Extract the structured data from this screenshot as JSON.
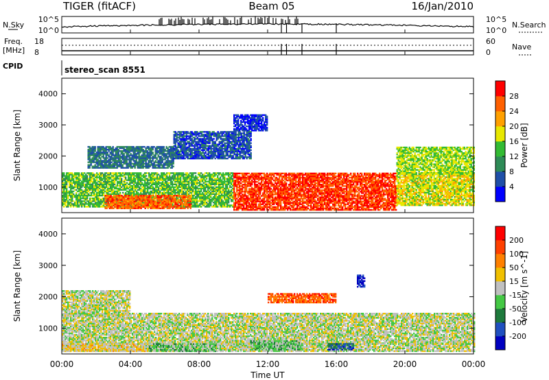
{
  "header": {
    "station": "TIGER (fitACF)",
    "beam": "Beam 05",
    "date": "16/Jan/2010"
  },
  "sky_panel": {
    "left_label": "N.Sky",
    "right_label": "N.Search",
    "left_ticks": [
      "10^5",
      "10^0"
    ],
    "right_ticks": [
      "10^5",
      "10^0"
    ]
  },
  "freq_panel": {
    "left_label_1": "Freq.",
    "left_label_2": "[MHz]",
    "right_label": "Nave",
    "left_ticks": [
      "18",
      "8"
    ],
    "right_ticks": [
      "60",
      "0"
    ]
  },
  "cpid_panel": {
    "label": "CPID",
    "program": "stereo_scan 8551"
  },
  "power_panel": {
    "ylabel": "Slant Range [km]",
    "yticks": [
      "4000",
      "3000",
      "2000",
      "1000"
    ],
    "colorbar_label": "Power [dB]",
    "colorbar_ticks": [
      "28",
      "24",
      "20",
      "16",
      "12",
      "8",
      "4"
    ],
    "colors": [
      "#0000ff",
      "#1f4fa8",
      "#2e8b57",
      "#33bb33",
      "#e8e800",
      "#ffa000",
      "#ff6000",
      "#ff0000"
    ]
  },
  "velocity_panel": {
    "ylabel": "Slant Range [km]",
    "yticks": [
      "4000",
      "3000",
      "2000",
      "1000"
    ],
    "colorbar_label": "Velocity [m s^-1]",
    "colorbar_ticks": [
      "200",
      "100",
      "50",
      "15",
      "-15",
      "-50",
      "-100",
      "-200"
    ],
    "colors": [
      "#0000c0",
      "#2050c0",
      "#1e7a3c",
      "#44c844",
      "#c0c0c0",
      "#f0c000",
      "#ff8000",
      "#ff4000",
      "#ff0000"
    ]
  },
  "x_axis": {
    "label": "Time UT",
    "ticks": [
      "00:00",
      "04:00",
      "08:00",
      "12:00",
      "16:00",
      "20:00",
      "00:00"
    ]
  },
  "chart_data": {
    "type": "heatmap",
    "title": "TIGER (fitACF) Beam 05 16/Jan/2010",
    "xlabel": "Time UT",
    "ylabel": "Slant Range [km]",
    "x_range_hours": [
      0,
      24
    ],
    "y_range_km": [
      180,
      4500
    ],
    "panels": [
      {
        "name": "Power [dB]",
        "color_range": [
          0,
          32
        ],
        "regions": [
          {
            "t": [
              0,
              10
            ],
            "r": [
              350,
              1450
            ],
            "value": 14
          },
          {
            "t": [
              2.5,
              7.5
            ],
            "r": [
              300,
              750
            ],
            "value": 26
          },
          {
            "t": [
              10,
              19.5
            ],
            "r": [
              250,
              1450
            ],
            "value": 28
          },
          {
            "t": [
              19.5,
              24
            ],
            "r": [
              400,
              1450
            ],
            "value": 18
          },
          {
            "t": [
              1.5,
              6.5
            ],
            "r": [
              1600,
              2300
            ],
            "value": 8
          },
          {
            "t": [
              6.5,
              11
            ],
            "r": [
              1900,
              2800
            ],
            "value": 6
          },
          {
            "t": [
              10,
              12
            ],
            "r": [
              2800,
              3300
            ],
            "value": 4
          },
          {
            "t": [
              19.5,
              24
            ],
            "r": [
              1400,
              2300
            ],
            "value": 16
          }
        ]
      },
      {
        "name": "Velocity [m s^-1]",
        "color_range": [
          -250,
          250
        ],
        "regions": [
          {
            "t": [
              0,
              24
            ],
            "r": [
              500,
              1450
            ],
            "value": 0
          },
          {
            "t": [
              0,
              24
            ],
            "r": [
              250,
              500
            ],
            "value": 0
          },
          {
            "t": [
              5,
              9
            ],
            "r": [
              250,
              500
            ],
            "value": -50
          },
          {
            "t": [
              11,
              14
            ],
            "r": [
              300,
              600
            ],
            "value": -50
          },
          {
            "t": [
              15.5,
              17
            ],
            "r": [
              300,
              500
            ],
            "value": -150
          },
          {
            "t": [
              0,
              5
            ],
            "r": [
              250,
              500
            ],
            "value": 30
          },
          {
            "t": [
              0,
              4
            ],
            "r": [
              1400,
              2200
            ],
            "value": 0
          },
          {
            "t": [
              12,
              16
            ],
            "r": [
              1800,
              2100
            ],
            "value": 150
          },
          {
            "t": [
              17.2,
              17.6
            ],
            "r": [
              2300,
              2700
            ],
            "value": -200
          }
        ]
      }
    ]
  }
}
